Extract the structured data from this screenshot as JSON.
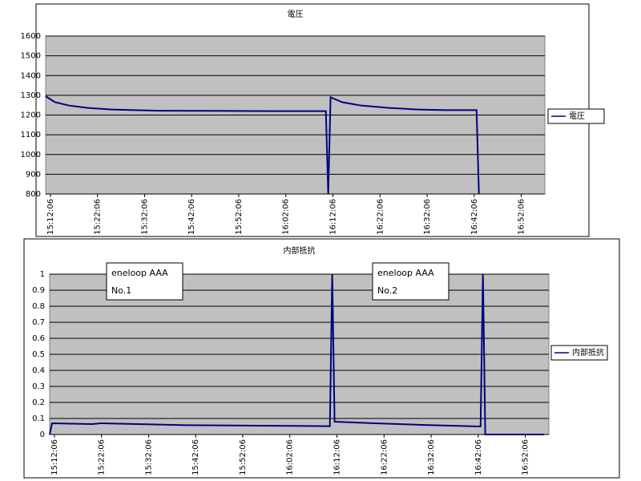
{
  "chart_data": [
    {
      "type": "line",
      "title": "電圧",
      "x": [
        "15:11:06",
        "15:13:06",
        "15:16:06",
        "15:20:06",
        "15:25:06",
        "15:35:06",
        "16:00:06",
        "16:10:36",
        "16:11:06",
        "16:11:36",
        "16:14:06",
        "16:18:06",
        "16:24:06",
        "16:30:06",
        "16:36:06",
        "16:42:36",
        "16:43:06"
      ],
      "series": [
        {
          "name": "電圧",
          "color": "#000080",
          "values": [
            1295,
            1265,
            1248,
            1236,
            1228,
            1222,
            1220,
            1220,
            800,
            1290,
            1265,
            1248,
            1236,
            1228,
            1225,
            1225,
            800
          ]
        }
      ],
      "xlim": [
        "15:11:06",
        "16:57:06"
      ],
      "xticks": [
        "15:12:06",
        "15:22:06",
        "15:32:06",
        "15:42:06",
        "15:52:06",
        "16:02:06",
        "16:12:06",
        "16:22:06",
        "16:32:06",
        "16:42:06",
        "16:52:06"
      ],
      "ylim": [
        800,
        1600
      ],
      "yticks": [
        800,
        900,
        1000,
        1100,
        1200,
        1300,
        1400,
        1500,
        1600
      ],
      "grid": true,
      "legend": "right"
    },
    {
      "type": "line",
      "title": "内部抵抗",
      "x": [
        "15:11:06",
        "15:11:36",
        "15:20:06",
        "15:22:06",
        "15:40:06",
        "16:10:36",
        "16:11:06",
        "16:11:36",
        "16:20:06",
        "16:30:06",
        "16:42:36",
        "16:43:06",
        "16:43:36",
        "16:56:06"
      ],
      "series": [
        {
          "name": "内部抵抗",
          "color": "#000080",
          "values": [
            0,
            0.07,
            0.065,
            0.07,
            0.058,
            0.052,
            1,
            0.08,
            0.07,
            0.06,
            0.05,
            1,
            0,
            0
          ]
        }
      ],
      "xlim": [
        "15:11:06",
        "16:57:06"
      ],
      "xticks": [
        "15:12:06",
        "15:22:06",
        "15:32:06",
        "15:42:06",
        "15:52:06",
        "16:02:06",
        "16:12:06",
        "16:22:06",
        "16:32:06",
        "16:42:06",
        "16:52:06"
      ],
      "ylim": [
        0,
        1
      ],
      "yticks": [
        0,
        0.1,
        0.2,
        0.3,
        0.4,
        0.5,
        0.6,
        0.7,
        0.8,
        0.9,
        1
      ],
      "grid": true,
      "legend": "right",
      "annotations": [
        [
          "eneloop AAA",
          "No.1"
        ],
        [
          "eneloop AAA",
          "No.2"
        ]
      ]
    }
  ]
}
